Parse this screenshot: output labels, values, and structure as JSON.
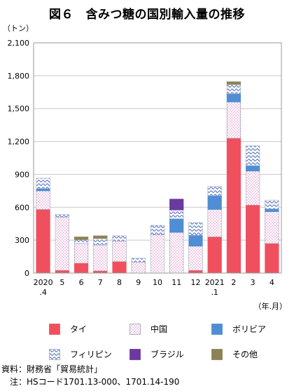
{
  "chart_data": {
    "type": "bar",
    "stacked": true,
    "title": "図６　含みつ糖の国別輸入量の推移",
    "ylabel": "（トン）",
    "xlabel": "（年.月）",
    "ylim": [
      0,
      2100
    ],
    "yticks": [
      "0",
      "300",
      "600",
      "900",
      "1,200",
      "1,500",
      "1,800",
      "2,100"
    ],
    "ytick_values": [
      0,
      300,
      600,
      900,
      1200,
      1500,
      1800,
      2100
    ],
    "categories": [
      "2020.4",
      "5",
      "6",
      "7",
      "8",
      "9",
      "10",
      "11",
      "12",
      "2021.1",
      "2",
      "3",
      "4"
    ],
    "category_labels": [
      [
        "2020",
        ".4"
      ],
      [
        "5"
      ],
      [
        "6"
      ],
      [
        "7"
      ],
      [
        "8"
      ],
      [
        "9"
      ],
      [
        "10"
      ],
      [
        "11"
      ],
      [
        "12"
      ],
      [
        "2021",
        ".1"
      ],
      [
        "2"
      ],
      [
        "3"
      ],
      [
        "4"
      ]
    ],
    "series": [
      {
        "name": "タイ",
        "color": "#f0505e",
        "pattern": "solid",
        "values": [
          580,
          25,
          90,
          20,
          105,
          0,
          0,
          0,
          25,
          330,
          1230,
          620,
          270
        ]
      },
      {
        "name": "中国",
        "color": "#d24fa8",
        "pattern": "dots",
        "values": [
          170,
          485,
          180,
          235,
          185,
          100,
          350,
          370,
          220,
          250,
          330,
          310,
          290
        ]
      },
      {
        "name": "ボリビア",
        "color": "#4f8ed4",
        "pattern": "solid",
        "values": [
          20,
          0,
          0,
          0,
          0,
          0,
          0,
          125,
          100,
          125,
          75,
          50,
          25
        ]
      },
      {
        "name": "フィリピン",
        "color": "#3d5fb8",
        "pattern": "waves",
        "values": [
          95,
          25,
          35,
          60,
          50,
          35,
          85,
          80,
          115,
          85,
          85,
          180,
          80
        ]
      },
      {
        "name": "ブラジル",
        "color": "#6b3aa0",
        "pattern": "solid",
        "values": [
          0,
          0,
          0,
          0,
          0,
          0,
          0,
          100,
          0,
          0,
          0,
          0,
          0
        ]
      },
      {
        "name": "その他",
        "color": "#8c8355",
        "pattern": "solid",
        "values": [
          0,
          0,
          25,
          25,
          0,
          0,
          0,
          0,
          0,
          0,
          25,
          0,
          0
        ]
      }
    ],
    "grid": "horizontal"
  },
  "notes": {
    "source": "資料：財務省「貿易統計」",
    "footnote": "注：HSコード1701.13-000、1701.14-190"
  }
}
